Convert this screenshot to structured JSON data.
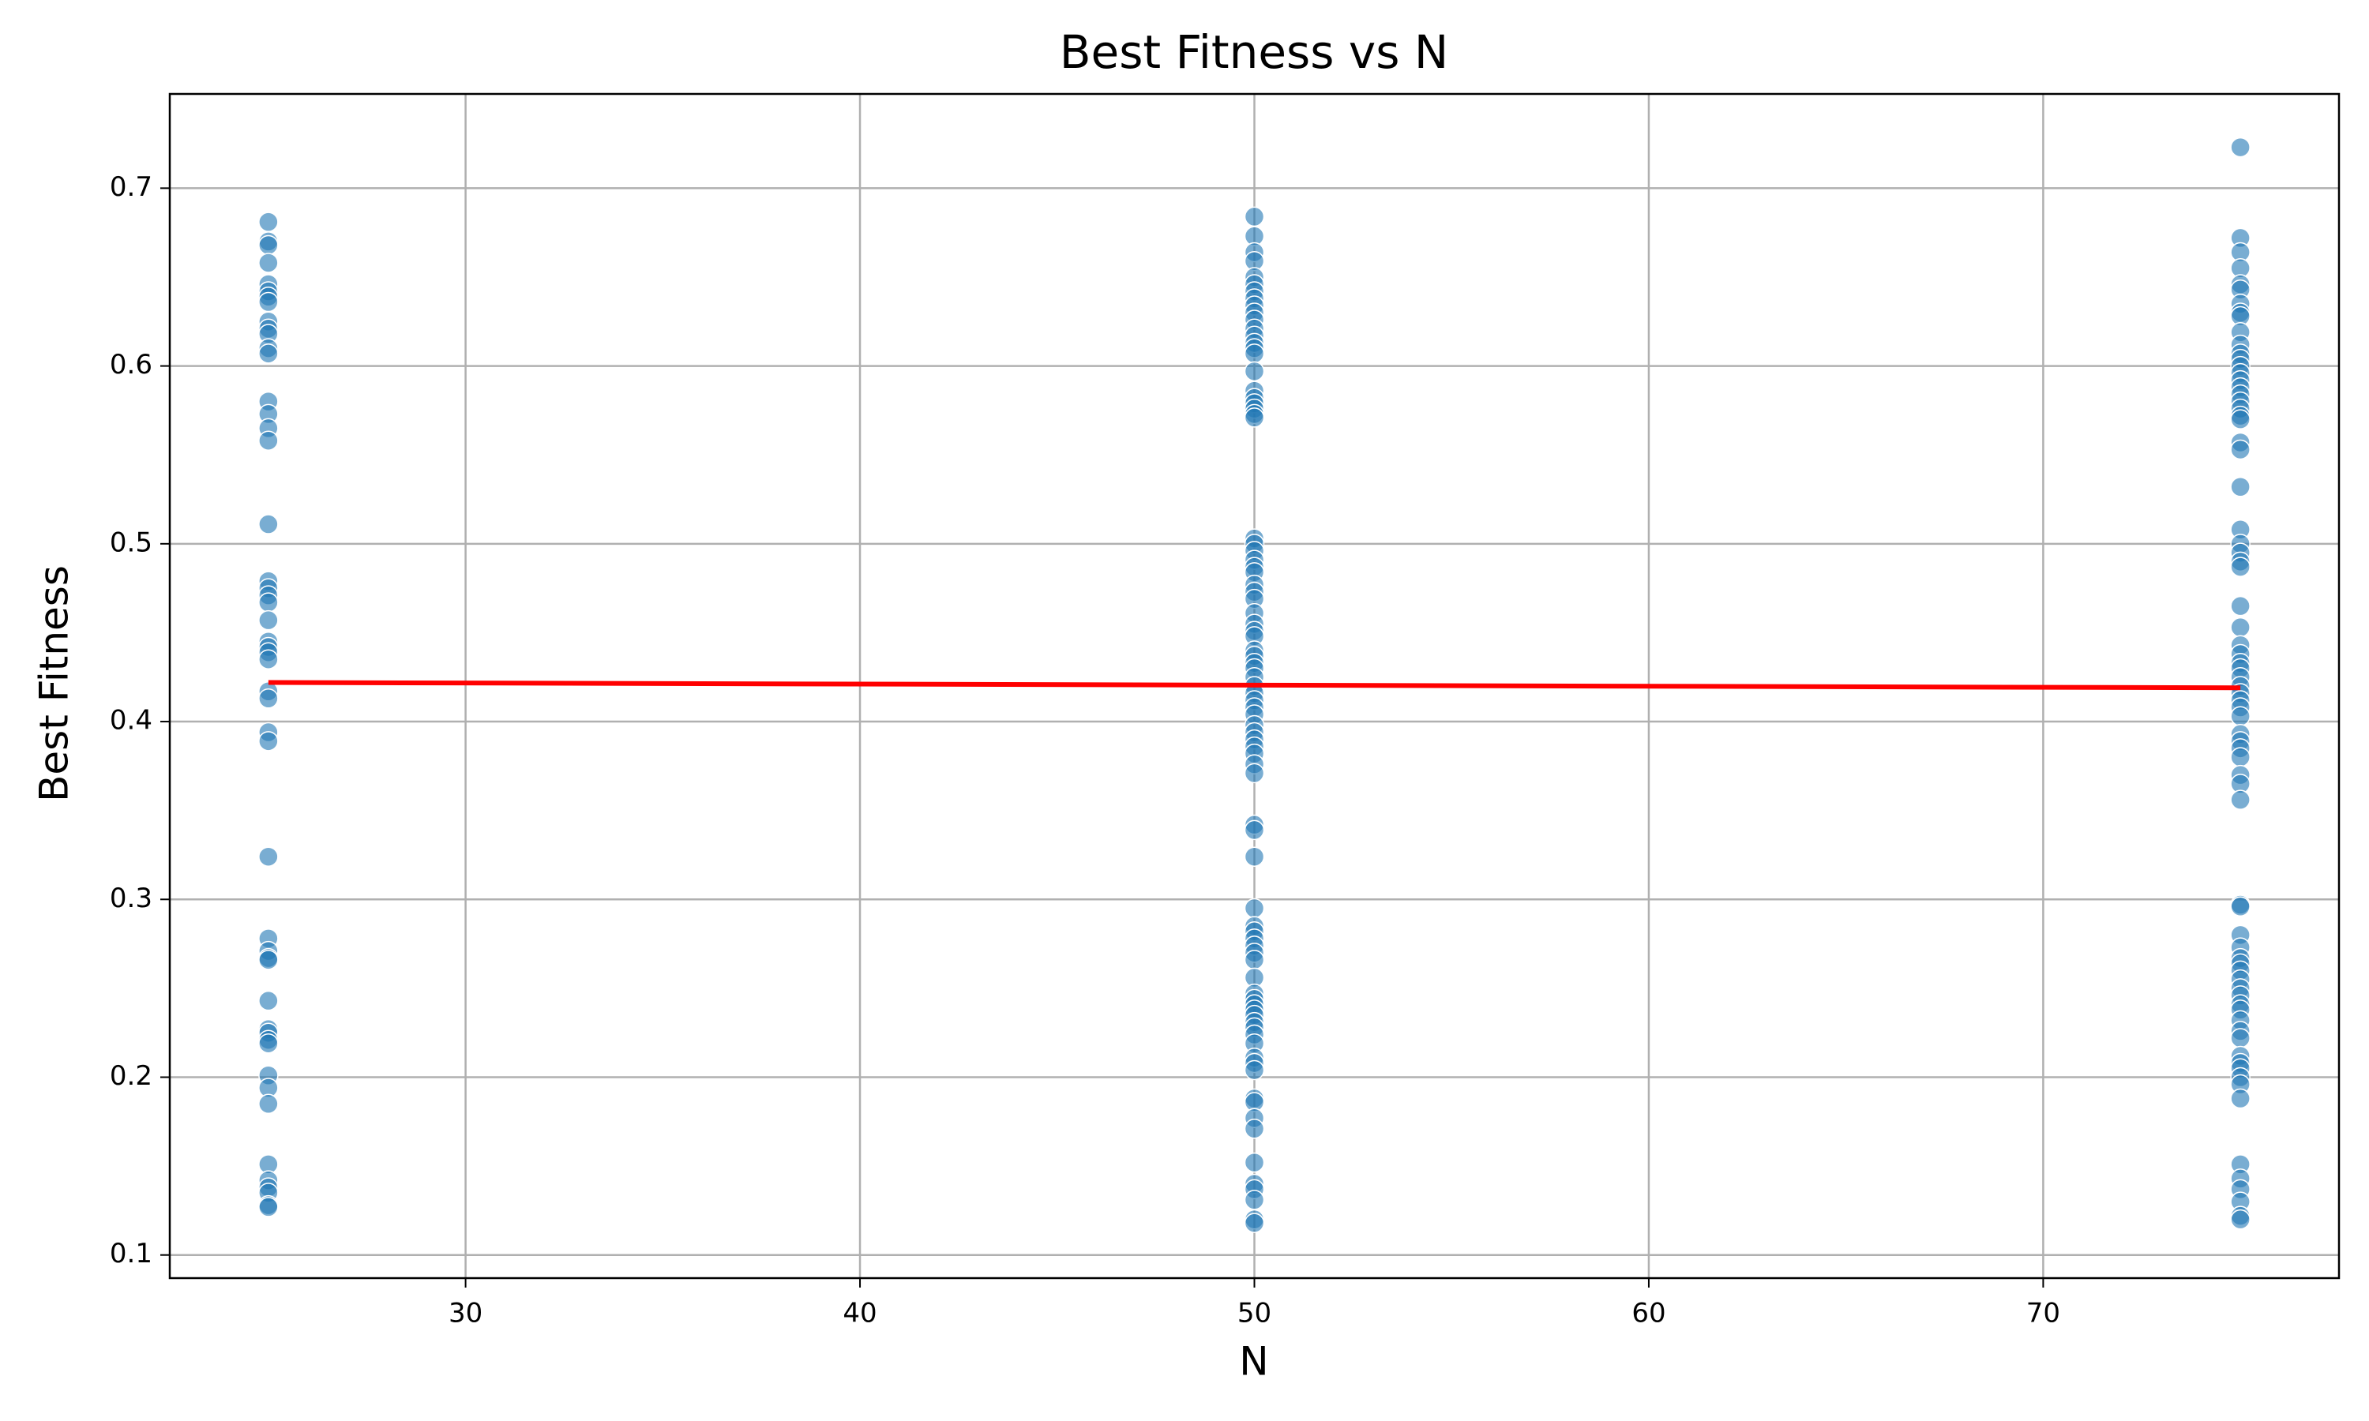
{
  "chart_data": {
    "type": "scatter",
    "title": "Best Fitness vs N",
    "x_label": "N",
    "y_label": "Best Fitness",
    "color": "#1f77b4",
    "grid": true,
    "xlim": [
      22.5,
      77.5
    ],
    "xticks": [
      30,
      40,
      50,
      60,
      70
    ],
    "ylim": [
      0.087,
      0.753
    ],
    "yticks": [
      0.1,
      0.2,
      0.3,
      0.4,
      0.5,
      0.6,
      0.7
    ],
    "series": [
      {
        "x": 25,
        "values": [
          0.681,
          0.67,
          0.668,
          0.658,
          0.646,
          0.642,
          0.639,
          0.636,
          0.625,
          0.621,
          0.618,
          0.61,
          0.607,
          0.58,
          0.573,
          0.565,
          0.558,
          0.511,
          0.479,
          0.475,
          0.471,
          0.467,
          0.457,
          0.445,
          0.442,
          0.439,
          0.435,
          0.417,
          0.413,
          0.394,
          0.389,
          0.324,
          0.278,
          0.271,
          0.267,
          0.266,
          0.243,
          0.227,
          0.225,
          0.221,
          0.219,
          0.201,
          0.194,
          0.185,
          0.151,
          0.142,
          0.138,
          0.135,
          0.128,
          0.127
        ]
      },
      {
        "x": 50,
        "values": [
          0.684,
          0.673,
          0.664,
          0.659,
          0.65,
          0.646,
          0.642,
          0.638,
          0.634,
          0.63,
          0.626,
          0.621,
          0.617,
          0.613,
          0.61,
          0.607,
          0.597,
          0.586,
          0.582,
          0.579,
          0.576,
          0.573,
          0.571,
          0.503,
          0.5,
          0.496,
          0.491,
          0.487,
          0.484,
          0.477,
          0.473,
          0.469,
          0.461,
          0.455,
          0.451,
          0.448,
          0.44,
          0.437,
          0.433,
          0.43,
          0.425,
          0.42,
          0.416,
          0.412,
          0.408,
          0.404,
          0.398,
          0.394,
          0.39,
          0.386,
          0.382,
          0.376,
          0.371,
          0.342,
          0.339,
          0.324,
          0.295,
          0.285,
          0.282,
          0.278,
          0.274,
          0.27,
          0.266,
          0.256,
          0.247,
          0.244,
          0.241,
          0.238,
          0.235,
          0.231,
          0.228,
          0.224,
          0.219,
          0.211,
          0.208,
          0.204,
          0.188,
          0.186,
          0.177,
          0.171,
          0.152,
          0.14,
          0.137,
          0.131,
          0.12,
          0.118
        ]
      },
      {
        "x": 75,
        "values": [
          0.723,
          0.672,
          0.664,
          0.655,
          0.646,
          0.643,
          0.635,
          0.63,
          0.628,
          0.619,
          0.612,
          0.607,
          0.604,
          0.6,
          0.596,
          0.592,
          0.588,
          0.584,
          0.58,
          0.576,
          0.572,
          0.57,
          0.557,
          0.553,
          0.532,
          0.508,
          0.5,
          0.495,
          0.49,
          0.487,
          0.465,
          0.453,
          0.443,
          0.438,
          0.433,
          0.43,
          0.425,
          0.42,
          0.416,
          0.412,
          0.408,
          0.403,
          0.393,
          0.389,
          0.385,
          0.38,
          0.37,
          0.365,
          0.356,
          0.297,
          0.296,
          0.28,
          0.273,
          0.267,
          0.264,
          0.26,
          0.255,
          0.25,
          0.246,
          0.241,
          0.238,
          0.232,
          0.226,
          0.222,
          0.212,
          0.208,
          0.205,
          0.2,
          0.196,
          0.188,
          0.151,
          0.143,
          0.137,
          0.13,
          0.122,
          0.12
        ]
      }
    ],
    "fit": {
      "x": [
        25,
        75
      ],
      "values": [
        0.422,
        0.419
      ],
      "color": "#ff0000"
    }
  }
}
